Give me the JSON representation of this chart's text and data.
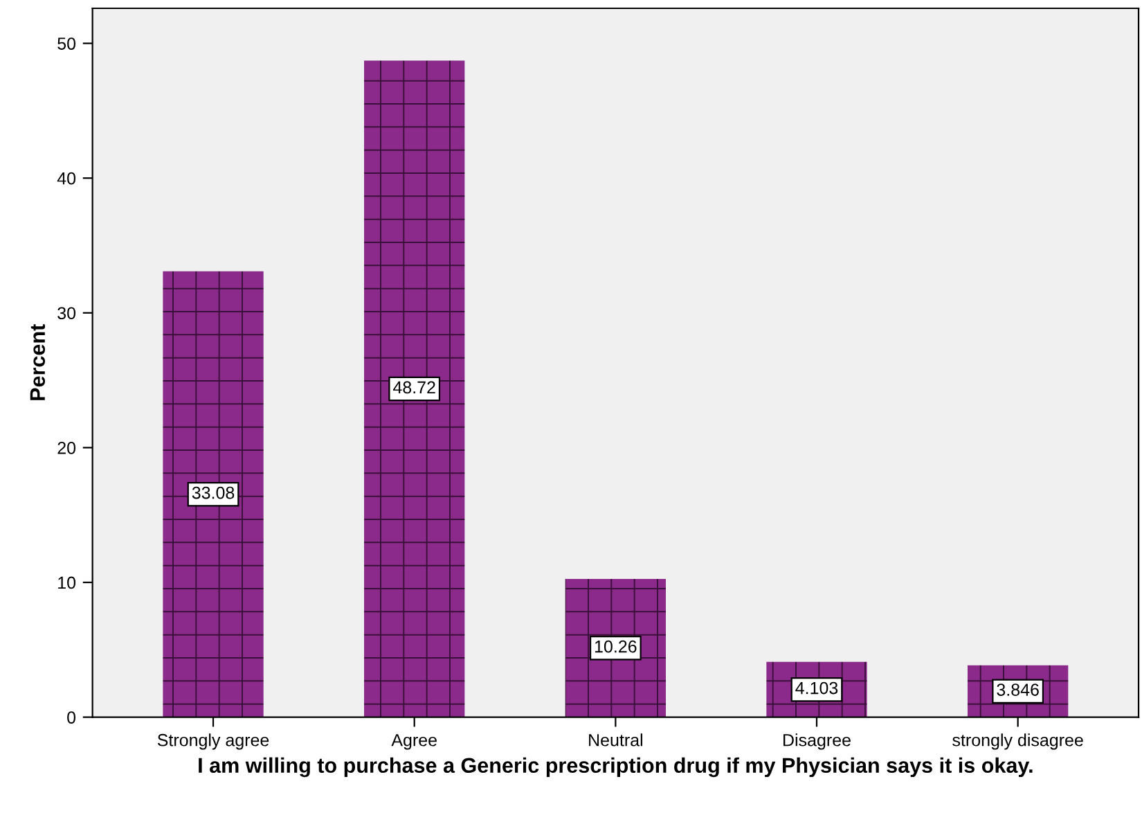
{
  "chart_data": {
    "type": "bar",
    "categories": [
      "Strongly agree",
      "Agree",
      "Neutral",
      "Disagree",
      "strongly disagree"
    ],
    "values": [
      33.08,
      48.72,
      10.26,
      4.103,
      3.846
    ],
    "color": "#8b2a8b",
    "xlabel": "I am willing to purchase a Generic prescription drug if my Physician says it is okay.",
    "ylabel": "Percent",
    "ylim": [
      0,
      52.6
    ],
    "yticks": [
      0,
      10,
      20,
      30,
      40,
      50
    ],
    "data_labels": true,
    "grid": false,
    "legend": false
  }
}
